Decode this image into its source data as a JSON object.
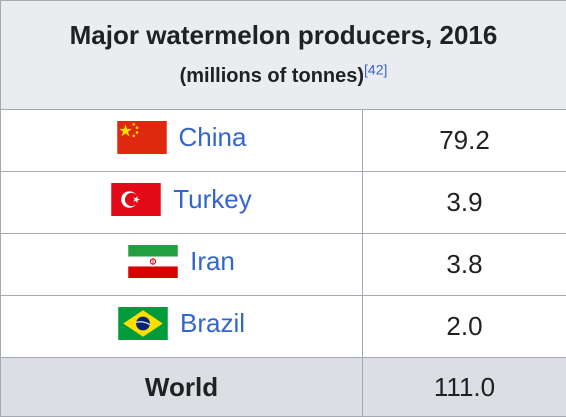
{
  "table": {
    "title": "Major watermelon producers, 2016",
    "subtitle": "(millions of tonnes)",
    "reference": "[42]",
    "rows": [
      {
        "country": "China",
        "value": "79.2",
        "flag": "china-flag",
        "colors": {
          "field": "#de2910",
          "star": "#ffde00"
        }
      },
      {
        "country": "Turkey",
        "value": "3.9",
        "flag": "turkey-flag",
        "colors": {
          "field": "#e30a17",
          "emblem": "#ffffff"
        }
      },
      {
        "country": "Iran",
        "value": "3.8",
        "flag": "iran-flag",
        "colors": {
          "top": "#239f40",
          "middle": "#ffffff",
          "bottom": "#da0000"
        }
      },
      {
        "country": "Brazil",
        "value": "2.0",
        "flag": "brazil-flag",
        "colors": {
          "field": "#009c3b",
          "diamond": "#ffdf00",
          "globe": "#002776"
        }
      }
    ],
    "total": {
      "label": "World",
      "value": "111.0"
    }
  },
  "colors": {
    "header_bg": "#eaecf0",
    "total_bg": "#dcdee3",
    "link": "#3366cc",
    "border": "#a2a9b1",
    "text": "#202122"
  }
}
